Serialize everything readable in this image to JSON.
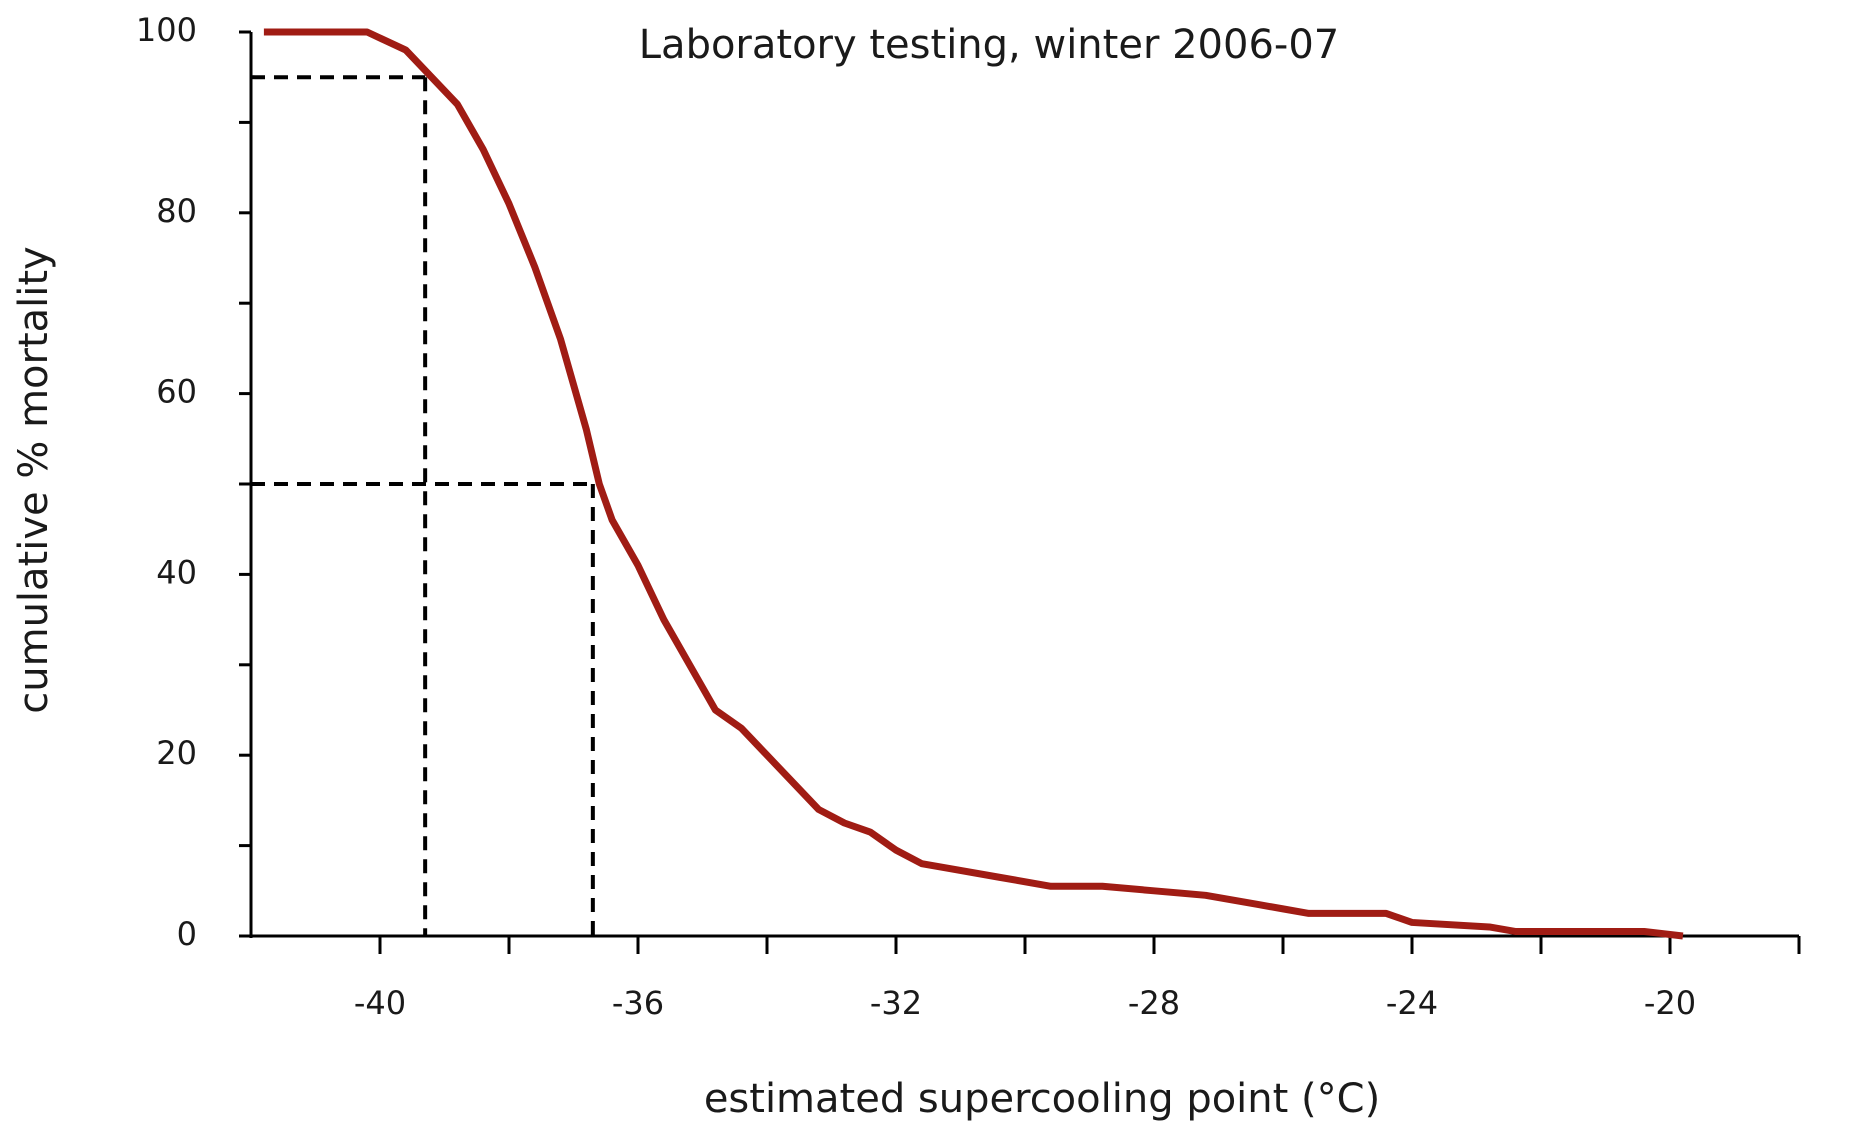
{
  "chart_data": {
    "type": "line",
    "title": "Laboratory testing, winter 2006-07",
    "x_label": "estimated supercooling point (°C)",
    "y_label": "cumulative % mortality",
    "x": [
      -41.8,
      -40.2,
      -39.6,
      -39.2,
      -38.8,
      -38.4,
      -38,
      -37.6,
      -37.2,
      -36.8,
      -36.6,
      -36.4,
      -36,
      -35.6,
      -35.2,
      -34.8,
      -34.4,
      -34,
      -33.6,
      -33.2,
      -32.8,
      -32.4,
      -32,
      -31.6,
      -31.2,
      -30.4,
      -29.6,
      -28.8,
      -28,
      -27.2,
      -26.4,
      -26,
      -25.6,
      -24.4,
      -24,
      -22.8,
      -22.4,
      -20.4,
      -19.8
    ],
    "series": [
      {
        "color": "#a01c14",
        "values": [
          100,
          100,
          98,
          95,
          92,
          87,
          81,
          74,
          66,
          56,
          50,
          46,
          41,
          35,
          30,
          25,
          23,
          20,
          17,
          14,
          12.5,
          11.5,
          9.5,
          8,
          7.5,
          6.5,
          5.5,
          5.5,
          5,
          4.5,
          3.5,
          3,
          2.5,
          2.5,
          1.5,
          1,
          0.5,
          0.5,
          0
        ]
      }
    ],
    "xlim": [
      -42,
      -18
    ],
    "xticks": [
      -40,
      -36,
      -32,
      -28,
      -24,
      -20
    ],
    "xminorticks": [
      -38,
      -34,
      -30,
      -26,
      -22,
      -18
    ],
    "ylim": [
      0,
      100
    ],
    "yticks": [
      0,
      20,
      40,
      60,
      80,
      100
    ],
    "yminorticks": [
      10,
      30,
      50,
      70,
      90
    ],
    "reference_lines": [
      {
        "x": -39.3,
        "y": 95
      },
      {
        "x": -36.7,
        "y": 50
      }
    ]
  }
}
